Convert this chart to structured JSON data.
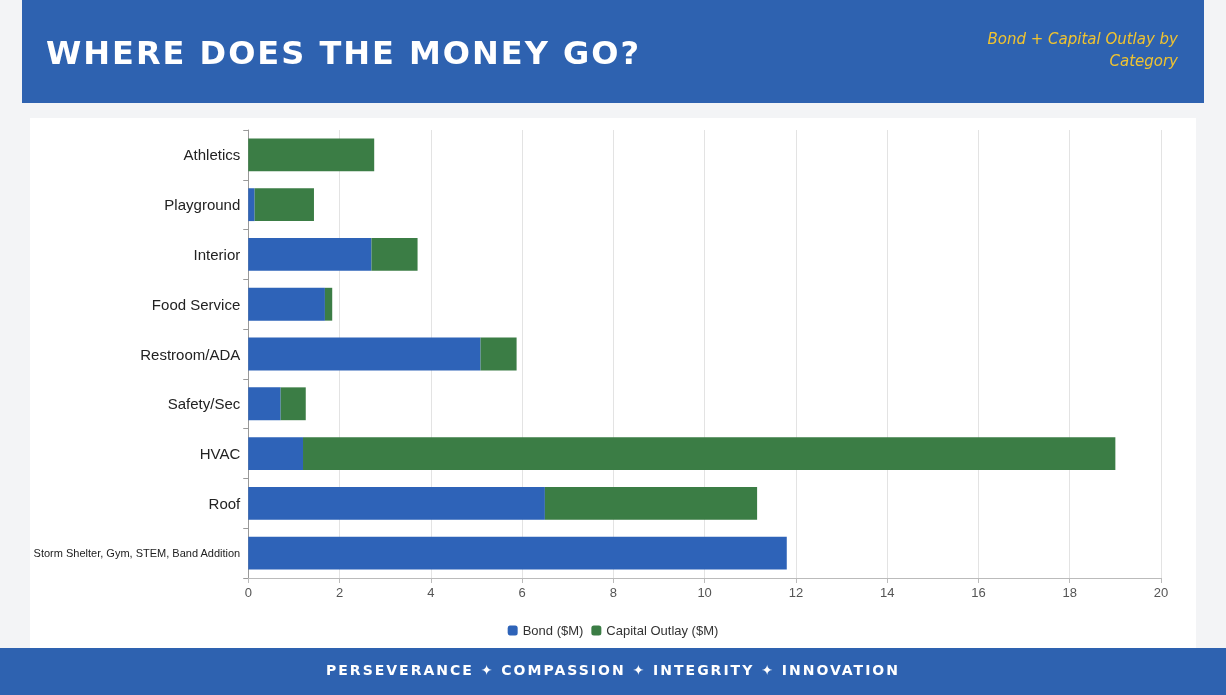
{
  "chart_data": {
    "type": "bar",
    "orientation": "horizontal",
    "stacked": true,
    "title": "WHERE DOES THE MONEY GO?",
    "subtitle": "Bond + Capital Outlay by Category",
    "categories": [
      "Athletics",
      "Playground",
      "Interior",
      "Food Service",
      "Restroom/ADA",
      "Safety/Sec",
      "HVAC",
      "Roof",
      "Storm Shelter, Gym, STEM, Band Addition"
    ],
    "series": [
      {
        "name": "Bond ($M)",
        "color": "#2e63b8",
        "values": [
          0,
          0.14,
          2.7,
          1.68,
          5.09,
          0.71,
          1.2,
          6.5,
          11.8
        ]
      },
      {
        "name": "Capital Outlay ($M)",
        "color": "#3b7d45",
        "values": [
          2.76,
          1.3,
          1.01,
          0.16,
          0.79,
          0.55,
          17.8,
          4.65,
          0
        ]
      }
    ],
    "xlim": [
      0,
      20
    ],
    "xticks": [
      0,
      2,
      4,
      6,
      8,
      10,
      12,
      14,
      16,
      18,
      20
    ],
    "grid": "x",
    "legend": "bottom",
    "annotations": [
      "PERSEVERANCE ✦ COMPASSION ✦ INTEGRITY ✦ INNOVATION"
    ]
  }
}
